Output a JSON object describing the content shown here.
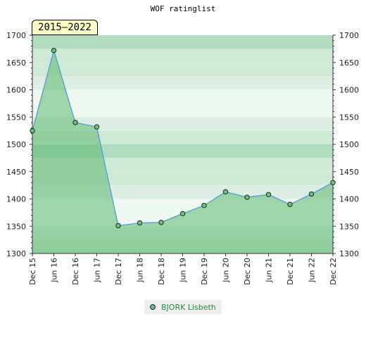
{
  "chart_data": {
    "type": "area",
    "title": "WOF ratinglist",
    "badge": "2015–2022",
    "categories": [
      "Dec 15",
      "Jun 16",
      "Dec 16",
      "Jun 17",
      "Dec 17",
      "Jun 18",
      "Dec 18",
      "Jun 19",
      "Dec 19",
      "Jun 20",
      "Dec 20",
      "Jun 21",
      "Dec 21",
      "Jun 22",
      "Dec 22"
    ],
    "series": [
      {
        "name": "BJORK Lisbeth",
        "values": [
          1525,
          1672,
          1540,
          1532,
          1351,
          1356,
          1357,
          1373,
          1388,
          1413,
          1403,
          1408,
          1390,
          1409,
          1430
        ]
      }
    ],
    "ylim": [
      1300,
      1700
    ],
    "yticks": [
      1300,
      1350,
      1400,
      1450,
      1500,
      1550,
      1600,
      1650,
      1700
    ],
    "grid": true,
    "legend_position": "bottom",
    "colors": {
      "line": "#5599dd",
      "area": "#5fb870",
      "marker": "#6fbf80",
      "band_dark": "#b2dcbf",
      "band_mid": "#cfe9d7",
      "band_light": "#ddefe3",
      "band_lightest": "#f0f8f2"
    }
  }
}
